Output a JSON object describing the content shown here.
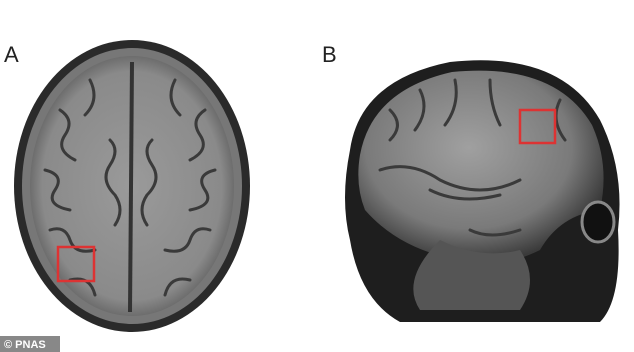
{
  "panels": {
    "a": "A",
    "b": "B"
  },
  "credit": "© PNAS"
}
